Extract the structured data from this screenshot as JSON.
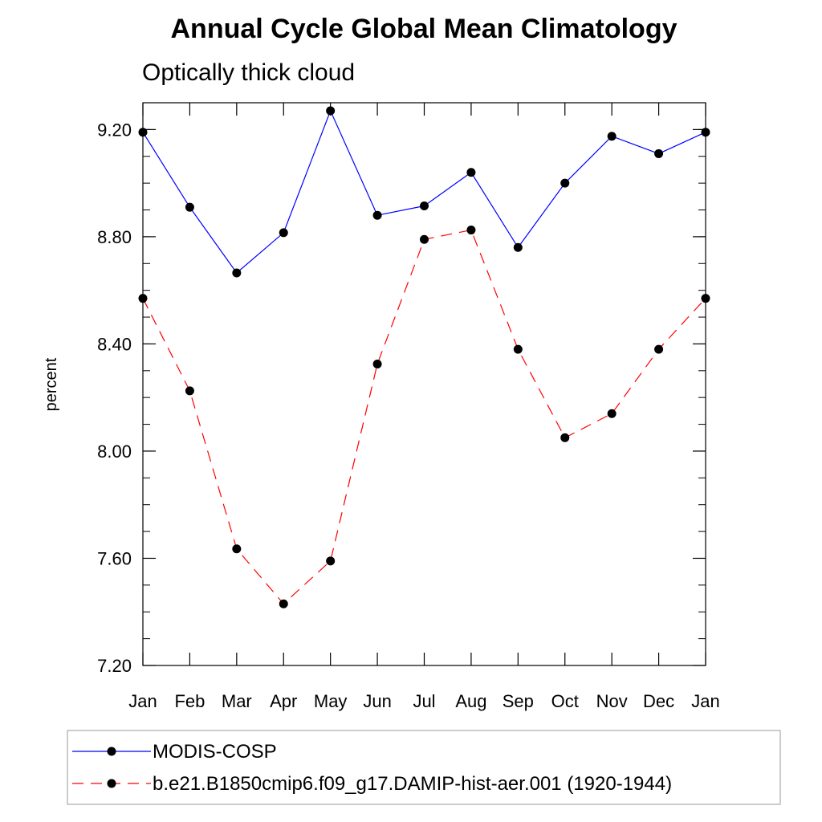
{
  "chart_data": {
    "type": "line",
    "title": "Annual Cycle Global Mean Climatology",
    "subtitle": "Optically thick cloud",
    "xlabel": "",
    "ylabel": "percent",
    "categories": [
      "Jan",
      "Feb",
      "Mar",
      "Apr",
      "May",
      "Jun",
      "Jul",
      "Aug",
      "Sep",
      "Oct",
      "Nov",
      "Dec",
      "Jan"
    ],
    "ylim": [
      7.2,
      9.3
    ],
    "yticks": [
      7.2,
      7.6,
      8.0,
      8.4,
      8.8,
      9.2
    ],
    "ytick_labels": [
      "7.20",
      "7.60",
      "8.00",
      "8.40",
      "8.80",
      "9.20"
    ],
    "grid": false,
    "legend_position": "bottom",
    "series": [
      {
        "name": "MODIS-COSP",
        "color": "#0000ff",
        "line_style": "solid",
        "marker": "filled-circle",
        "values": [
          9.19,
          8.91,
          8.665,
          8.815,
          9.27,
          8.88,
          8.915,
          9.04,
          8.76,
          9.0,
          9.175,
          9.11,
          9.19
        ]
      },
      {
        "name": "b.e21.B1850cmip6.f09_g17.DAMIP-hist-aer.001 (1920-1944)",
        "color": "#ff0000",
        "line_style": "dashed",
        "marker": "filled-circle",
        "values": [
          8.57,
          8.225,
          7.635,
          7.43,
          7.59,
          8.325,
          8.79,
          8.825,
          8.38,
          8.05,
          8.14,
          8.38,
          8.57
        ]
      }
    ]
  }
}
